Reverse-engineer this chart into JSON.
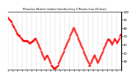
{
  "title": "Milwaukee Weather Outdoor Humidity Every 5 Minutes (Last 24 Hours)",
  "bg_color": "#ffffff",
  "plot_bg_color": "#ffffff",
  "line_color": "#ff0000",
  "grid_color": "#888888",
  "text_color": "#000000",
  "ylim": [
    30,
    100
  ],
  "ytick_labels": [
    "40",
    "50",
    "60",
    "70",
    "80",
    "90",
    "100"
  ],
  "yticks": [
    40,
    50,
    60,
    70,
    80,
    90,
    100
  ],
  "y_values": [
    93,
    92,
    91,
    91,
    90,
    90,
    89,
    89,
    88,
    88,
    87,
    86,
    85,
    84,
    84,
    83,
    82,
    82,
    81,
    80,
    79,
    78,
    77,
    76,
    75,
    74,
    73,
    73,
    72,
    72,
    71,
    71,
    71,
    70,
    70,
    70,
    69,
    69,
    68,
    68,
    67,
    67,
    66,
    66,
    65,
    65,
    65,
    65,
    65,
    65,
    65,
    65,
    65,
    65,
    65,
    65,
    65,
    64,
    64,
    63,
    63,
    63,
    62,
    62,
    62,
    63,
    63,
    63,
    64,
    64,
    64,
    65,
    65,
    65,
    66,
    66,
    67,
    67,
    68,
    68,
    68,
    67,
    66,
    65,
    64,
    63,
    62,
    61,
    60,
    59,
    58,
    57,
    56,
    55,
    54,
    53,
    52,
    51,
    50,
    49,
    48,
    47,
    46,
    45,
    44,
    43,
    42,
    43,
    44,
    45,
    46,
    47,
    47,
    47,
    47,
    46,
    45,
    44,
    43,
    42,
    41,
    40,
    39,
    38,
    37,
    36,
    35,
    35,
    34,
    34,
    33,
    33,
    32,
    32,
    32,
    32,
    32,
    32,
    33,
    33,
    33,
    34,
    34,
    35,
    35,
    36,
    37,
    38,
    39,
    40,
    41,
    42,
    43,
    44,
    45,
    46,
    47,
    48,
    49,
    50,
    51,
    52,
    53,
    54,
    55,
    56,
    57,
    58,
    59,
    60,
    61,
    62,
    63,
    64,
    65,
    66,
    67,
    68,
    69,
    70,
    71,
    72,
    73,
    74,
    75,
    76,
    77,
    78,
    79,
    80,
    81,
    80,
    79,
    78,
    77,
    76,
    75,
    74,
    73,
    72,
    71,
    70,
    69,
    68,
    67,
    66,
    65,
    64,
    63,
    62,
    61,
    60,
    59,
    58,
    57,
    56,
    55,
    54,
    53,
    52,
    51,
    50,
    49,
    48,
    47,
    46,
    45,
    44,
    43,
    42,
    41,
    40,
    39,
    38,
    37,
    36,
    35,
    35,
    36,
    37,
    38,
    39,
    40,
    41,
    42,
    43,
    44,
    45,
    46,
    47,
    48,
    47,
    46,
    45,
    44,
    43,
    42,
    41,
    40,
    39,
    38,
    39,
    40,
    41,
    42,
    43,
    44,
    45,
    46,
    47,
    48,
    49,
    50,
    51,
    52,
    53,
    54,
    55,
    56,
    57,
    58,
    59,
    60,
    61,
    62,
    63,
    64,
    65,
    66,
    67,
    67,
    67,
    67,
    66,
    66,
    65,
    65,
    64,
    63,
    63,
    62,
    61,
    60,
    62,
    63,
    64,
    65,
    66,
    67,
    68,
    67,
    66,
    65,
    65,
    64,
    63,
    62,
    63,
    64,
    65,
    66,
    67,
    68,
    69,
    70,
    71,
    72,
    72,
    72,
    73
  ]
}
